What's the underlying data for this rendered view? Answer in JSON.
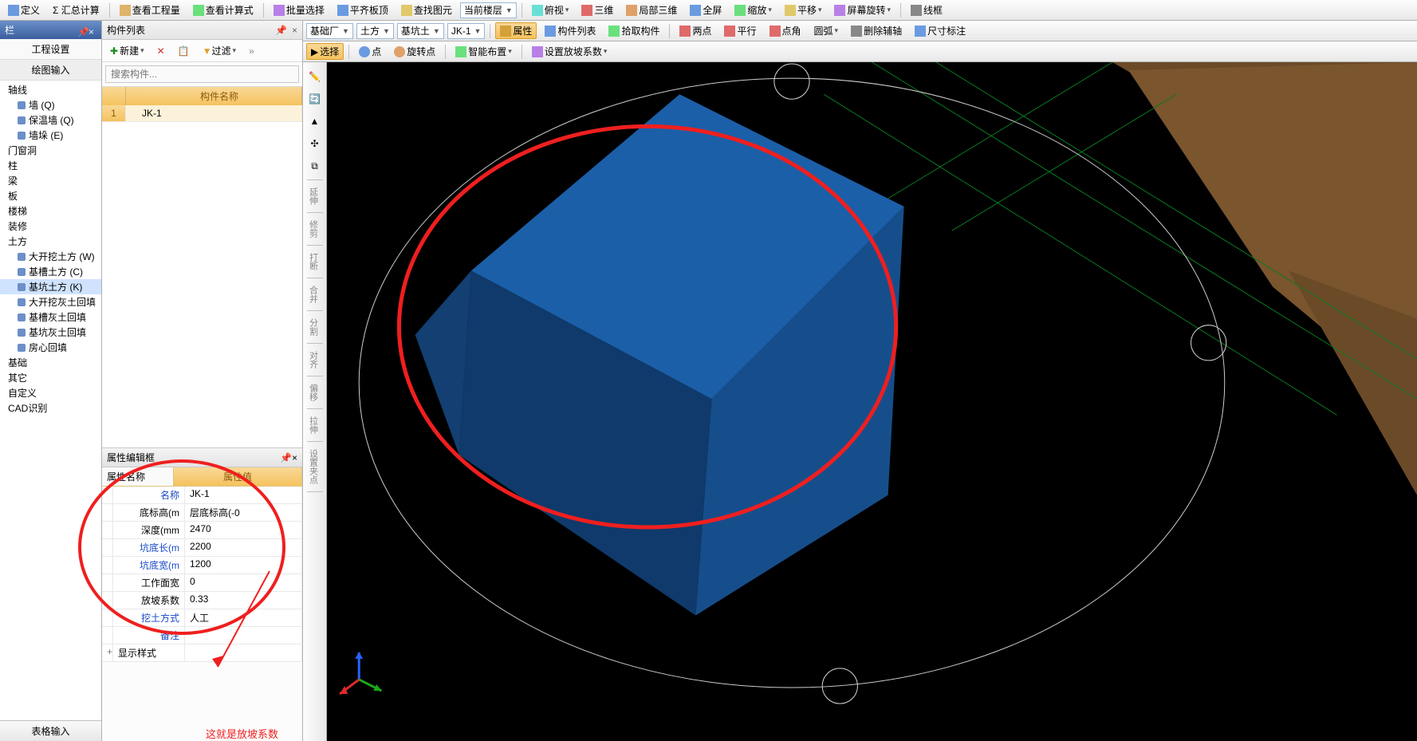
{
  "toolbar1": {
    "define": "定义",
    "sum_calc": "Σ 汇总计算",
    "view_qty": "查看工程量",
    "view_formula": "查看计算式",
    "batch_select": "批量选择",
    "level_slab": "平齐板顶",
    "find_elem": "查找图元",
    "cur_floor": "当前楼层",
    "overlook": "俯视",
    "three_d": "三维",
    "local_3d": "局部三维",
    "fullscreen": "全屏",
    "zoom": "缩放",
    "pan": "平移",
    "rotate_screen": "屏幕旋转",
    "wireframe": "线框"
  },
  "toolbar2": {
    "combo1": "基础厂",
    "combo2": "土方",
    "combo3": "基坑土",
    "combo4": "JK-1",
    "prop_btn": "属性",
    "comp_list": "构件列表",
    "pick_comp": "拾取构件",
    "two_pts": "两点",
    "parallel": "平行",
    "pt_angle": "点角",
    "arc": "圆弧",
    "del_aux": "删除辅轴",
    "dim": "尺寸标注"
  },
  "toolbar3": {
    "select": "选择",
    "point": "点",
    "rot_pt": "旋转点",
    "smart_layout": "智能布置",
    "slope_coef": "设置放坡系数"
  },
  "left": {
    "header": "栏",
    "sect1": "工程设置",
    "sect2": "绘图输入",
    "tree": [
      {
        "t": "轴线",
        "l": 1
      },
      {
        "t": "墙 (Q)",
        "l": 2,
        "i": 1
      },
      {
        "t": "保温墙 (Q)",
        "l": 2,
        "i": 1
      },
      {
        "t": "墙垛 (E)",
        "l": 2,
        "i": 1
      },
      {
        "t": "门窗洞",
        "l": 1
      },
      {
        "t": "柱",
        "l": 1
      },
      {
        "t": "梁",
        "l": 1
      },
      {
        "t": "板",
        "l": 1
      },
      {
        "t": "楼梯",
        "l": 1
      },
      {
        "t": "装修",
        "l": 1
      },
      {
        "t": "土方",
        "l": 1
      },
      {
        "t": "大开挖土方 (W)",
        "l": 2,
        "i": 1
      },
      {
        "t": "基槽土方 (C)",
        "l": 2,
        "i": 1
      },
      {
        "t": "基坑土方 (K)",
        "l": 2,
        "i": 1,
        "sel": 1
      },
      {
        "t": "大开挖灰土回填",
        "l": 2,
        "i": 1
      },
      {
        "t": "基槽灰土回填",
        "l": 2,
        "i": 1
      },
      {
        "t": "基坑灰土回填",
        "l": 2,
        "i": 1
      },
      {
        "t": "房心回填",
        "l": 2,
        "i": 1
      },
      {
        "t": "基础",
        "l": 1
      },
      {
        "t": "其它",
        "l": 1
      },
      {
        "t": "自定义",
        "l": 1
      },
      {
        "t": "CAD识别",
        "l": 1
      }
    ],
    "bottom_tab": "表格输入"
  },
  "comp": {
    "title": "构件列表",
    "new": "新建",
    "filter": "过滤",
    "search_ph": "搜索构件...",
    "col_name": "构件名称",
    "row_num": "1",
    "row_name": "JK-1"
  },
  "prop": {
    "title": "属性编辑框",
    "th_name": "属性名称",
    "th_val": "属性值",
    "rows": [
      {
        "n": "名称",
        "v": "JK-1",
        "blue": 1
      },
      {
        "n": "底标高(m",
        "v": "层底标高(-0",
        "blue": 0
      },
      {
        "n": "深度(mm",
        "v": "2470",
        "blue": 0
      },
      {
        "n": "坑底长(m",
        "v": "2200",
        "blue": 1
      },
      {
        "n": "坑底宽(m",
        "v": "1200",
        "blue": 1
      },
      {
        "n": "工作面宽",
        "v": "0",
        "blue": 0
      },
      {
        "n": "放坡系数",
        "v": "0.33",
        "blue": 0
      },
      {
        "n": "挖土方式",
        "v": "人工",
        "blue": 1
      },
      {
        "n": "备注",
        "v": "",
        "blue": 1
      }
    ],
    "expand_row": "显示样式"
  },
  "annotation": {
    "text": "这就是放坡系数"
  },
  "vtb": [
    "延伸",
    "修剪",
    "打断",
    "合并",
    "分割",
    "对齐",
    "偏移",
    "拉伸",
    "设置夹点"
  ],
  "viewport": {
    "bg": "#000000",
    "pit_top_color": "#1b5fa8",
    "pit_side1": "#164e8c",
    "pit_side2": "#0f3a6b",
    "pit_side3": "#133f72",
    "ground_color": "#6b4a28",
    "ground_edge": "#7a552e",
    "grid_color": "#0a7a22",
    "circle_color": "#cccccc",
    "annot_red": "#ef1f1f"
  }
}
